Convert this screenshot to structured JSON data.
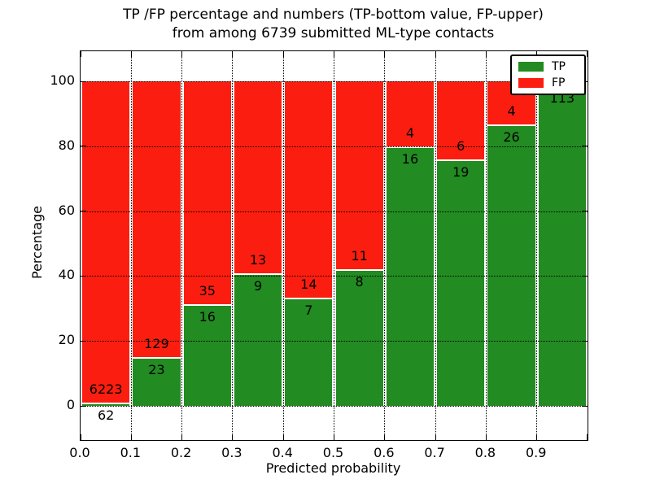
{
  "figure": {
    "title_line1": "TP /FP percentage and numbers (TP-bottom value, FP-upper)",
    "title_line2": "from among 6739 submitted ML-type contacts",
    "xlabel": "Predicted probability",
    "ylabel": "Percentage",
    "background": "#ffffff",
    "text_color": "#000000"
  },
  "legend": {
    "position": "upper right",
    "items": [
      {
        "label": "TP",
        "color": "#228b22"
      },
      {
        "label": "FP",
        "color": "#fb1e10"
      }
    ]
  },
  "chart_data": {
    "type": "bar",
    "stacked": true,
    "title": "TP /FP percentage and numbers (TP-bottom value, FP-upper) from among 6739 submitted ML-type contacts",
    "xlabel": "Predicted probability",
    "ylabel": "Percentage",
    "total_contacts": 6739,
    "grid": true,
    "legend_position": "upper right",
    "xlim": [
      0.0,
      1.0
    ],
    "ylim": [
      -10.5,
      109.5
    ],
    "x_bin_edges": [
      0.0,
      0.1,
      0.2,
      0.3,
      0.4,
      0.5,
      0.6,
      0.7,
      0.8,
      0.9,
      1.0
    ],
    "x_tick_labels": [
      "0.0",
      "0.1",
      "0.2",
      "0.3",
      "0.4",
      "0.5",
      "0.6",
      "0.7",
      "0.8",
      "0.9"
    ],
    "y_ticks": [
      0,
      20,
      40,
      60,
      80,
      100
    ],
    "y_tick_labels": [
      "0",
      "20",
      "40",
      "60",
      "80",
      "100"
    ],
    "series": [
      {
        "name": "TP",
        "color": "#228b22",
        "counts": [
          62,
          23,
          16,
          9,
          7,
          8,
          16,
          19,
          26,
          113
        ],
        "labels": [
          "62",
          "23",
          "16",
          "9",
          "7",
          "8",
          "16",
          "19",
          "26",
          "113"
        ],
        "pct": [
          1.0,
          15.1,
          31.4,
          40.9,
          33.3,
          42.1,
          80.0,
          76.0,
          86.7,
          98.7
        ]
      },
      {
        "name": "FP",
        "color": "#fb1e10",
        "counts": [
          6223,
          129,
          35,
          13,
          14,
          11,
          4,
          6,
          4,
          null
        ],
        "labels": [
          "6223",
          "129",
          "35",
          "13",
          "14",
          "11",
          "4",
          "6",
          "4",
          ""
        ],
        "pct": [
          99.0,
          84.9,
          68.6,
          59.1,
          66.7,
          57.9,
          20.0,
          24.0,
          13.3,
          1.3
        ]
      }
    ]
  }
}
